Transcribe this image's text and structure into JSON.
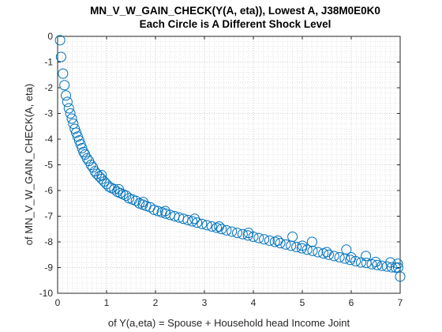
{
  "chart_data": {
    "type": "scatter",
    "title": "MN_V_W_GAIN_CHECK(Y(A, eta)), Lowest A, J38M0E0K0",
    "subtitle": "Each Circle is A Different Shock Level",
    "xlabel": "of Y(a,eta) = Spouse + Household head Income Joint",
    "ylabel": "of MN_V_W_GAIN_CHECK(A, eta)",
    "xlim": [
      0,
      7
    ],
    "ylim": [
      -10,
      0
    ],
    "xticks": [
      "0",
      "1",
      "2",
      "3",
      "4",
      "5",
      "6",
      "7"
    ],
    "yticks": [
      "0",
      "-1",
      "-2",
      "-3",
      "-4",
      "-5",
      "-6",
      "-7",
      "-8",
      "-9",
      "-10"
    ],
    "grid": "major and minor dotted",
    "marker": "open circle",
    "color": "#0072BD",
    "points": [
      [
        0.05,
        -0.15
      ],
      [
        0.07,
        -0.8
      ],
      [
        0.11,
        -1.45
      ],
      [
        0.14,
        -1.9
      ],
      [
        0.17,
        -2.3
      ],
      [
        0.2,
        -2.55
      ],
      [
        0.23,
        -2.8
      ],
      [
        0.26,
        -3.0
      ],
      [
        0.29,
        -3.2
      ],
      [
        0.32,
        -3.4
      ],
      [
        0.35,
        -3.6
      ],
      [
        0.38,
        -3.75
      ],
      [
        0.41,
        -3.9
      ],
      [
        0.44,
        -4.05
      ],
      [
        0.47,
        -4.2
      ],
      [
        0.5,
        -4.35
      ],
      [
        0.53,
        -4.5
      ],
      [
        0.56,
        -4.6
      ],
      [
        0.6,
        -4.75
      ],
      [
        0.64,
        -4.85
      ],
      [
        0.68,
        -5.0
      ],
      [
        0.72,
        -5.1
      ],
      [
        0.76,
        -5.25
      ],
      [
        0.8,
        -5.35
      ],
      [
        0.85,
        -5.45
      ],
      [
        0.9,
        -5.55
      ],
      [
        0.95,
        -5.65
      ],
      [
        1.0,
        -5.75
      ],
      [
        1.05,
        -5.85
      ],
      [
        1.1,
        -5.9
      ],
      [
        1.16,
        -5.95
      ],
      [
        1.22,
        -6.05
      ],
      [
        1.28,
        -6.1
      ],
      [
        1.34,
        -6.15
      ],
      [
        1.4,
        -6.2
      ],
      [
        1.46,
        -6.3
      ],
      [
        1.53,
        -6.35
      ],
      [
        1.6,
        -6.4
      ],
      [
        1.67,
        -6.5
      ],
      [
        1.74,
        -6.55
      ],
      [
        1.81,
        -6.6
      ],
      [
        1.89,
        -6.65
      ],
      [
        1.97,
        -6.75
      ],
      [
        2.05,
        -6.8
      ],
      [
        2.13,
        -6.85
      ],
      [
        2.21,
        -6.9
      ],
      [
        2.3,
        -6.95
      ],
      [
        2.39,
        -7.0
      ],
      [
        2.48,
        -7.05
      ],
      [
        2.57,
        -7.1
      ],
      [
        2.66,
        -7.15
      ],
      [
        2.75,
        -7.2
      ],
      [
        2.85,
        -7.25
      ],
      [
        2.95,
        -7.3
      ],
      [
        3.05,
        -7.35
      ],
      [
        3.15,
        -7.4
      ],
      [
        3.25,
        -7.45
      ],
      [
        3.35,
        -7.5
      ],
      [
        3.45,
        -7.55
      ],
      [
        3.56,
        -7.6
      ],
      [
        3.67,
        -7.65
      ],
      [
        3.78,
        -7.7
      ],
      [
        3.89,
        -7.75
      ],
      [
        4.0,
        -7.8
      ],
      [
        4.11,
        -7.85
      ],
      [
        4.22,
        -7.9
      ],
      [
        4.33,
        -7.95
      ],
      [
        4.44,
        -8.0
      ],
      [
        4.55,
        -8.05
      ],
      [
        4.66,
        -8.1
      ],
      [
        4.77,
        -8.15
      ],
      [
        4.88,
        -8.2
      ],
      [
        4.99,
        -8.25
      ],
      [
        5.1,
        -8.3
      ],
      [
        5.21,
        -8.35
      ],
      [
        5.32,
        -8.4
      ],
      [
        5.43,
        -8.45
      ],
      [
        5.54,
        -8.5
      ],
      [
        5.65,
        -8.55
      ],
      [
        5.76,
        -8.6
      ],
      [
        5.87,
        -8.65
      ],
      [
        5.98,
        -8.7
      ],
      [
        6.09,
        -8.75
      ],
      [
        6.2,
        -8.8
      ],
      [
        6.31,
        -8.82
      ],
      [
        6.42,
        -8.87
      ],
      [
        6.53,
        -8.9
      ],
      [
        6.63,
        -8.93
      ],
      [
        6.73,
        -8.96
      ],
      [
        6.83,
        -8.99
      ],
      [
        6.91,
        -9.0
      ],
      [
        6.96,
        -9.0
      ],
      [
        7.0,
        -9.35
      ],
      [
        0.9,
        -5.4
      ],
      [
        1.25,
        -5.95
      ],
      [
        1.75,
        -6.45
      ],
      [
        2.2,
        -6.8
      ],
      [
        2.8,
        -7.1
      ],
      [
        3.3,
        -7.4
      ],
      [
        3.9,
        -7.65
      ],
      [
        4.5,
        -7.95
      ],
      [
        5.0,
        -8.15
      ],
      [
        5.5,
        -8.4
      ],
      [
        6.0,
        -8.6
      ],
      [
        6.5,
        -8.78
      ],
      [
        4.8,
        -7.8
      ],
      [
        5.2,
        -8.0
      ],
      [
        5.9,
        -8.3
      ],
      [
        6.3,
        -8.55
      ],
      [
        6.8,
        -8.8
      ],
      [
        6.95,
        -8.85
      ]
    ]
  }
}
